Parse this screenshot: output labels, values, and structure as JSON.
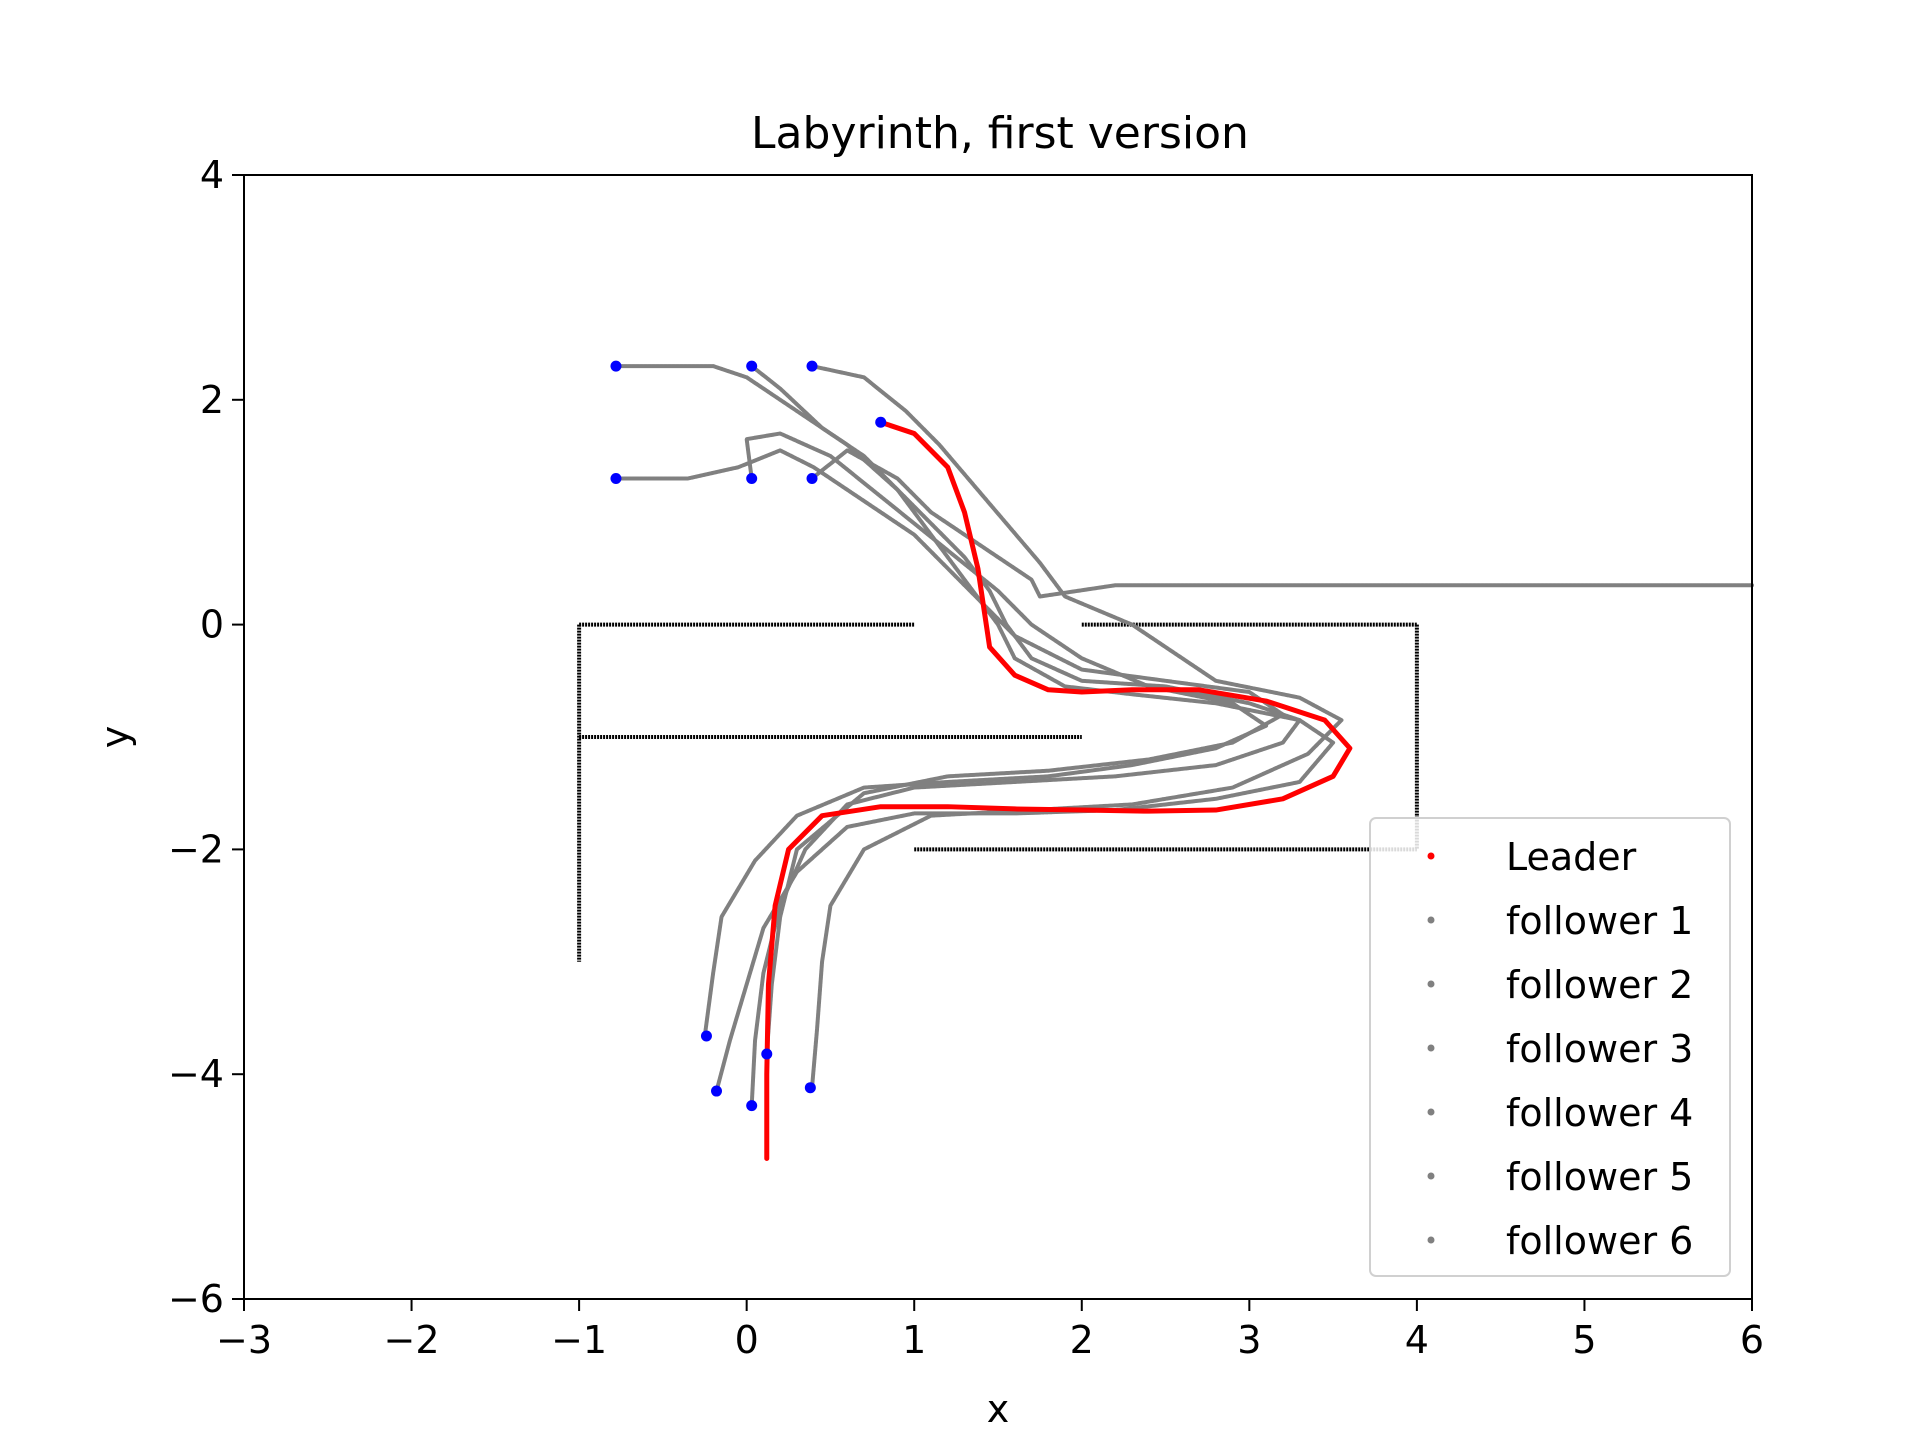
{
  "chart_data": {
    "type": "scatter",
    "title": "Labyrinth, first version",
    "xlabel": "x",
    "ylabel": "y",
    "xlim": [
      -3,
      6
    ],
    "ylim": [
      -6,
      4
    ],
    "xticks": [
      -3,
      -2,
      -1,
      0,
      1,
      2,
      3,
      4,
      5,
      6
    ],
    "yticks": [
      -6,
      -4,
      -2,
      0,
      2,
      4
    ],
    "xtick_labels": [
      "−3",
      "−2",
      "−1",
      "0",
      "1",
      "2",
      "3",
      "4",
      "5",
      "6"
    ],
    "ytick_labels": [
      "−6",
      "−4",
      "−2",
      "0",
      "2",
      "4"
    ],
    "grid": false,
    "legend_position": "lower right",
    "colors": {
      "leader": "#ff0000",
      "follower": "#808080",
      "wall": "#000000",
      "marker": "#0000ff"
    },
    "walls": [
      {
        "x": [
          -1,
          1
        ],
        "y": [
          0,
          0
        ]
      },
      {
        "x": [
          -1,
          -1
        ],
        "y": [
          0,
          -3
        ]
      },
      {
        "x": [
          -1,
          2
        ],
        "y": [
          -1,
          -1
        ]
      },
      {
        "x": [
          2,
          4
        ],
        "y": [
          0,
          0
        ]
      },
      {
        "x": [
          4,
          4
        ],
        "y": [
          0,
          -2
        ]
      },
      {
        "x": [
          1,
          4
        ],
        "y": [
          -2,
          -2
        ]
      }
    ],
    "series": [
      {
        "name": "Leader",
        "color": "#ff0000",
        "x": [
          0.8,
          1.0,
          1.2,
          1.3,
          1.38,
          1.42,
          1.45,
          1.6,
          1.8,
          2.0,
          2.3,
          2.7,
          3.1,
          3.45,
          3.6,
          3.5,
          3.2,
          2.8,
          2.4,
          2.0,
          1.6,
          1.2,
          0.8,
          0.45,
          0.25,
          0.17,
          0.13,
          0.12,
          0.12
        ],
        "y": [
          1.8,
          1.7,
          1.4,
          1.0,
          0.5,
          0.1,
          -0.2,
          -0.45,
          -0.58,
          -0.6,
          -0.58,
          -0.58,
          -0.68,
          -0.85,
          -1.1,
          -1.35,
          -1.55,
          -1.65,
          -1.66,
          -1.65,
          -1.64,
          -1.62,
          -1.62,
          -1.7,
          -2.0,
          -2.5,
          -3.2,
          -4.0,
          -4.75
        ]
      },
      {
        "name": "follower 1",
        "color": "#808080",
        "x": [
          -0.78,
          -0.2,
          0.0,
          0.3,
          0.6,
          0.9,
          1.1,
          1.3,
          1.5,
          1.6,
          1.9,
          2.3,
          2.8,
          3.3,
          3.5,
          3.3,
          2.8,
          2.2,
          1.6,
          1.0,
          0.6,
          0.3,
          0.1,
          0.0,
          -0.1,
          -0.18
        ],
        "y": [
          2.3,
          2.3,
          2.2,
          1.9,
          1.6,
          1.2,
          0.8,
          0.4,
          0.0,
          -0.3,
          -0.55,
          -0.62,
          -0.7,
          -0.85,
          -1.05,
          -1.4,
          -1.55,
          -1.65,
          -1.68,
          -1.68,
          -1.8,
          -2.2,
          -2.7,
          -3.2,
          -3.7,
          -4.15
        ]
      },
      {
        "name": "follower 2",
        "color": "#808080",
        "x": [
          0.03,
          0.2,
          0.45,
          0.7,
          0.9,
          1.1,
          1.3,
          1.45,
          1.55,
          1.7,
          2.0,
          2.5,
          3.0,
          3.3,
          3.2,
          2.8,
          2.2,
          1.6,
          1.0,
          0.6,
          0.35,
          0.2,
          0.1,
          0.05,
          0.03
        ],
        "y": [
          2.3,
          2.1,
          1.75,
          1.5,
          1.2,
          0.9,
          0.6,
          0.3,
          0.0,
          -0.3,
          -0.5,
          -0.55,
          -0.7,
          -0.85,
          -1.05,
          -1.25,
          -1.35,
          -1.4,
          -1.45,
          -1.6,
          -2.0,
          -2.5,
          -3.1,
          -3.7,
          -4.28
        ]
      },
      {
        "name": "follower 3",
        "color": "#808080",
        "x": [
          0.39,
          0.7,
          0.95,
          1.15,
          1.35,
          1.55,
          1.75,
          1.9,
          2.3,
          2.8,
          3.3,
          3.55,
          3.35,
          2.9,
          2.3,
          1.7,
          1.1,
          0.7,
          0.5,
          0.45,
          0.42,
          0.39
        ],
        "y": [
          2.3,
          2.2,
          1.9,
          1.6,
          1.25,
          0.9,
          0.55,
          0.25,
          0.0,
          -0.5,
          -0.65,
          -0.85,
          -1.15,
          -1.45,
          -1.6,
          -1.65,
          -1.7,
          -2.0,
          -2.5,
          -3.0,
          -3.6,
          -4.12
        ]
      },
      {
        "name": "follower 4",
        "color": "#808080",
        "x": [
          -0.78,
          -0.35,
          -0.05,
          0.2,
          0.4,
          0.6,
          0.8,
          1.0,
          1.2,
          1.4,
          1.6,
          2.0,
          2.5,
          3.0,
          3.2,
          2.9,
          2.4,
          1.8,
          1.2,
          0.7,
          0.3,
          0.2,
          0.15,
          0.12
        ],
        "y": [
          1.3,
          1.3,
          1.4,
          1.55,
          1.4,
          1.2,
          1.0,
          0.8,
          0.5,
          0.2,
          -0.1,
          -0.4,
          -0.5,
          -0.6,
          -0.8,
          -1.05,
          -1.2,
          -1.3,
          -1.35,
          -1.5,
          -2.0,
          -2.6,
          -3.2,
          -3.82
        ]
      },
      {
        "name": "follower 5",
        "color": "#808080",
        "x": [
          0.03,
          0.0,
          0.2,
          0.5,
          0.75,
          1.0,
          1.25,
          1.5,
          1.7,
          2.0,
          2.4,
          2.9,
          3.1,
          2.8,
          2.3,
          1.8,
          1.2,
          0.7,
          0.3,
          0.05,
          -0.15,
          -0.2,
          -0.25
        ],
        "y": [
          1.3,
          1.65,
          1.7,
          1.5,
          1.2,
          0.9,
          0.6,
          0.3,
          0.0,
          -0.3,
          -0.55,
          -0.7,
          -0.9,
          -1.1,
          -1.25,
          -1.35,
          -1.4,
          -1.45,
          -1.7,
          -2.1,
          -2.6,
          -3.1,
          -3.66
        ]
      },
      {
        "name": "follower 6",
        "color": "#808080",
        "x": [
          0.39,
          0.6,
          0.9,
          1.1,
          1.3,
          1.5,
          1.7,
          1.75,
          2.2,
          3.0,
          4.0,
          5.0,
          6.0
        ],
        "y": [
          1.3,
          1.55,
          1.3,
          1.0,
          0.8,
          0.6,
          0.4,
          0.25,
          0.35,
          0.35,
          0.35,
          0.35,
          0.35
        ]
      }
    ],
    "markers": {
      "color": "#0000ff",
      "x": [
        -0.78,
        0.03,
        0.39,
        -0.78,
        0.03,
        0.39,
        0.8,
        -0.24,
        -0.18,
        0.03,
        0.12,
        0.38
      ],
      "y": [
        2.3,
        2.3,
        2.3,
        1.3,
        1.3,
        1.3,
        1.8,
        -3.66,
        -4.15,
        -4.28,
        -3.82,
        -4.12
      ]
    }
  }
}
